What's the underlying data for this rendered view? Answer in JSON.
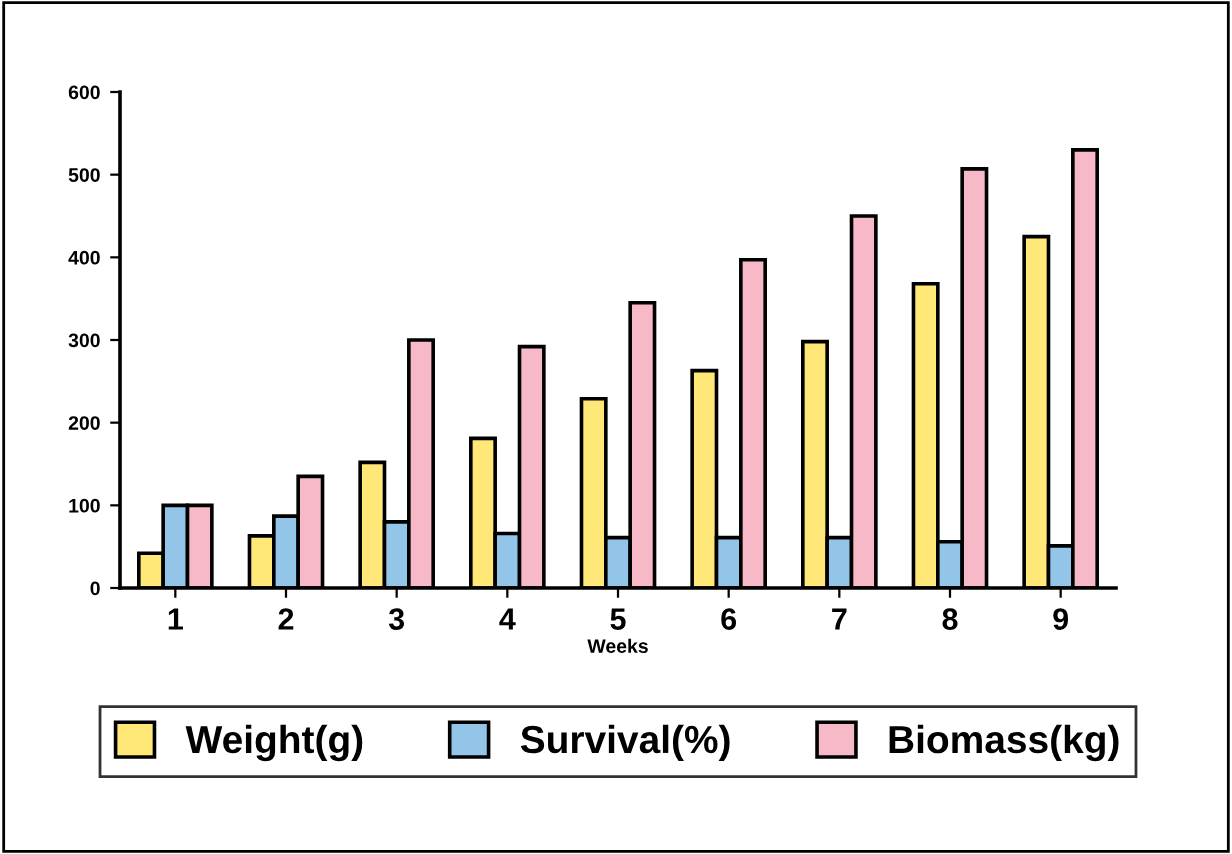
{
  "chart_data": {
    "type": "bar",
    "xlabel": "Weeks",
    "categories": [
      "1",
      "2",
      "3",
      "4",
      "5",
      "6",
      "7",
      "8",
      "9"
    ],
    "series": [
      {
        "name": "Weight(g)",
        "color": "#ffe878",
        "values": [
          42,
          63,
          152,
          181,
          229,
          263,
          298,
          368,
          425
        ]
      },
      {
        "name": "Survival(%)",
        "color": "#92c5e8",
        "values": [
          100,
          87,
          80,
          66,
          61,
          61,
          61,
          56,
          51
        ]
      },
      {
        "name": "Biomass(kg)",
        "color": "#f7b8c8",
        "values": [
          100,
          135,
          300,
          292,
          345,
          397,
          450,
          507,
          530
        ]
      }
    ],
    "ylim": [
      0,
      600
    ],
    "yticks": [
      0,
      100,
      200,
      300,
      400,
      500,
      600
    ],
    "grid": false,
    "legend": "bottom"
  }
}
